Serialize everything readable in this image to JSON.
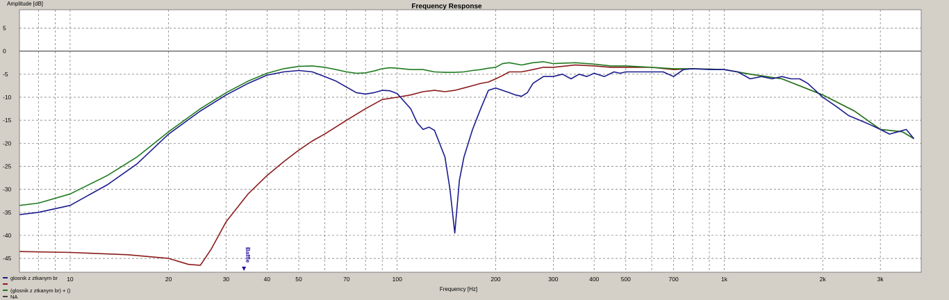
{
  "chart_data": {
    "type": "line",
    "title": "Frequency Response",
    "xlabel": "Frequency [Hz]",
    "ylabel": "Amplitude [dB]",
    "x_scale": "log",
    "xlim": [
      7,
      4000
    ],
    "ylim": [
      -48,
      9
    ],
    "grid": true,
    "legend_position": "bottom-left",
    "x_ticks": [
      {
        "v": 10,
        "label": "10"
      },
      {
        "v": 20,
        "label": "20"
      },
      {
        "v": 30,
        "label": "30"
      },
      {
        "v": 40,
        "label": "40"
      },
      {
        "v": 50,
        "label": "50"
      },
      {
        "v": 70,
        "label": "70"
      },
      {
        "v": 100,
        "label": "100"
      },
      {
        "v": 200,
        "label": "200"
      },
      {
        "v": 300,
        "label": "300"
      },
      {
        "v": 400,
        "label": "400"
      },
      {
        "v": 500,
        "label": "500"
      },
      {
        "v": 700,
        "label": "700"
      },
      {
        "v": 1000,
        "label": "1k"
      },
      {
        "v": 2000,
        "label": "2k"
      },
      {
        "v": 3000,
        "label": "3k"
      }
    ],
    "y_ticks": [
      5,
      0,
      -5,
      -10,
      -15,
      -20,
      -25,
      -30,
      -35,
      -40,
      -45
    ],
    "annotations": [
      {
        "x": 34,
        "text": "Baffle"
      }
    ],
    "series": [
      {
        "name": "glosnik z ztkanym br",
        "color": "#1a1a8c",
        "x": [
          7,
          8,
          10,
          13,
          16,
          20,
          25,
          30,
          35,
          40,
          45,
          50,
          55,
          60,
          65,
          70,
          75,
          80,
          85,
          90,
          95,
          100,
          110,
          115,
          120,
          125,
          130,
          140,
          145,
          150,
          155,
          160,
          170,
          180,
          190,
          200,
          210,
          220,
          230,
          240,
          250,
          260,
          280,
          300,
          320,
          340,
          360,
          380,
          400,
          430,
          460,
          480,
          500,
          550,
          600,
          650,
          700,
          750,
          800,
          900,
          1000,
          1100,
          1200,
          1300,
          1400,
          1500,
          1600,
          1700,
          1800,
          2000,
          2200,
          2400,
          2600,
          2800,
          3000,
          3200,
          3400,
          3600,
          3800
        ],
        "y": [
          -35.5,
          -35,
          -33.5,
          -29,
          -24.5,
          -18,
          -13,
          -9.5,
          -7,
          -5.2,
          -4.5,
          -4.2,
          -4.5,
          -5.5,
          -6.5,
          -7.8,
          -9,
          -9.3,
          -9,
          -8.5,
          -8.6,
          -9.2,
          -12.5,
          -15.5,
          -17,
          -16.5,
          -17.2,
          -23,
          -30,
          -39.5,
          -28,
          -23,
          -17,
          -12.5,
          -8.5,
          -8,
          -8.5,
          -9,
          -9.5,
          -9.8,
          -9,
          -7,
          -5.5,
          -5.5,
          -5,
          -6,
          -5,
          -5.5,
          -4.8,
          -5.5,
          -4.5,
          -4.8,
          -4.5,
          -4.5,
          -4.5,
          -4.5,
          -5.5,
          -4,
          -3.8,
          -4,
          -4,
          -4.5,
          -6,
          -5.5,
          -6,
          -5.5,
          -6,
          -6,
          -7,
          -10,
          -12,
          -14,
          -15,
          -16,
          -17,
          -18,
          -17.5,
          -17,
          -19
        ]
      },
      {
        "name": "",
        "color": "#8b1a1a",
        "x": [
          7,
          10,
          15,
          20,
          23,
          25,
          27,
          30,
          35,
          40,
          45,
          50,
          55,
          60,
          70,
          80,
          90,
          100,
          110,
          120,
          130,
          140,
          150,
          160,
          170,
          180,
          190,
          200,
          210,
          220,
          240,
          260,
          280,
          300,
          350,
          400,
          450,
          500,
          600,
          700,
          800,
          1000,
          1200,
          1500,
          2000,
          2500,
          3000,
          3500,
          3800
        ],
        "y": [
          -43.5,
          -43.7,
          -44.2,
          -45,
          -46.3,
          -46.5,
          -43,
          -37,
          -31,
          -27,
          -24,
          -21.5,
          -19.5,
          -18,
          -15,
          -12.5,
          -10.5,
          -10,
          -9.5,
          -8.8,
          -8.5,
          -8.8,
          -8.5,
          -8,
          -7.5,
          -7,
          -6.7,
          -6,
          -5.3,
          -4.5,
          -4.5,
          -4,
          -3.5,
          -3.5,
          -3,
          -3.2,
          -3.5,
          -3.5,
          -3.5,
          -4,
          -3.8,
          -4,
          -5,
          -6,
          -9.5,
          -13,
          -17,
          -17.5,
          -19
        ]
      },
      {
        "name": "(glosnik z ztkanym br) + ()",
        "color": "#1f7a1f",
        "x": [
          7,
          8,
          10,
          13,
          16,
          20,
          25,
          30,
          35,
          40,
          45,
          50,
          55,
          60,
          65,
          70,
          75,
          80,
          85,
          90,
          95,
          100,
          110,
          120,
          130,
          140,
          150,
          160,
          170,
          180,
          190,
          200,
          210,
          220,
          240,
          260,
          280,
          300,
          350,
          400,
          450,
          500,
          600,
          700,
          800,
          1000,
          1200,
          1500,
          2000,
          2500,
          3000,
          3500,
          3800
        ],
        "y": [
          -33.5,
          -33,
          -31,
          -27,
          -23,
          -17.5,
          -12.5,
          -9,
          -6.5,
          -4.8,
          -3.8,
          -3.3,
          -3.2,
          -3.5,
          -4,
          -4.5,
          -4.8,
          -4.7,
          -4.3,
          -3.8,
          -3.6,
          -3.7,
          -4,
          -4,
          -4.5,
          -4.6,
          -4.6,
          -4.5,
          -4.2,
          -4,
          -3.7,
          -3.5,
          -2.7,
          -2.5,
          -3,
          -2.5,
          -2.3,
          -2.7,
          -2.5,
          -2.8,
          -3.2,
          -3.2,
          -3.5,
          -3.8,
          -3.8,
          -4,
          -5,
          -6,
          -9.5,
          -13,
          -17,
          -17.5,
          -19
        ]
      }
    ],
    "legend": [
      {
        "label": "glosnik z ztkanym br",
        "color": "#1a1a8c"
      },
      {
        "label": "",
        "color": "#8b1a1a"
      },
      {
        "label": "(glosnik z ztkanym br) + ()",
        "color": "#1f7a1f"
      },
      {
        "label": "NA",
        "color": "#404040"
      }
    ]
  }
}
